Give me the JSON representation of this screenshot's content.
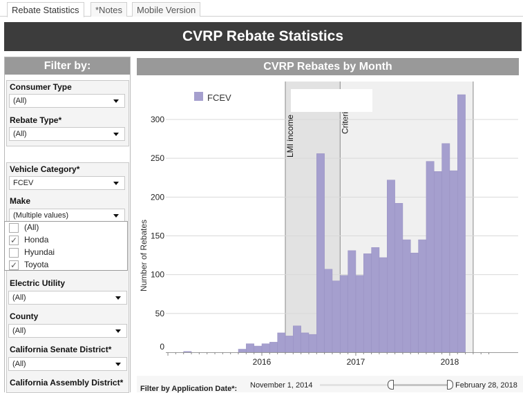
{
  "tabs": [
    {
      "label": "Rebate Statistics",
      "active": true
    },
    {
      "label": "*Notes"
    },
    {
      "label": "Mobile Version"
    }
  ],
  "header": {
    "title": "CVRP Rebate Statistics"
  },
  "filters": {
    "title": "Filter by:",
    "consumer_type": {
      "label": "Consumer Type",
      "value": "(All)"
    },
    "rebate_type": {
      "label": "Rebate Type*",
      "value": "(All)"
    },
    "vehicle_category": {
      "label": "Vehicle Category*",
      "value": "FCEV"
    },
    "make": {
      "label": "Make",
      "value": "(Multiple values)",
      "options": [
        {
          "label": "(All)",
          "checked": false
        },
        {
          "label": "Honda",
          "checked": true
        },
        {
          "label": "Hyundai",
          "checked": false
        },
        {
          "label": "Toyota",
          "checked": true
        }
      ]
    },
    "electric_utility": {
      "label": "Electric Utility",
      "value": "(All)"
    },
    "county": {
      "label": "County",
      "value": "(All)"
    },
    "senate": {
      "label": "California Senate District*",
      "value": "(All)"
    },
    "assembly": {
      "label": "California Assembly District*"
    }
  },
  "date_filter": {
    "label": "Filter by Application Date*:",
    "start": "November 1, 2014",
    "end": "February 28, 2018"
  },
  "chart_data": {
    "type": "bar",
    "title": "CVRP Rebates by Month",
    "ylabel": "Number of Rebates",
    "legend": [
      {
        "name": "FCEV",
        "color": "#a59fce"
      }
    ],
    "legend_placement": "top-left",
    "ylim": [
      0,
      345
    ],
    "yticks": [
      0,
      50,
      100,
      150,
      200,
      250,
      300
    ],
    "xticks": [
      "2016",
      "2017",
      "2018"
    ],
    "xlim": [
      "2015-01",
      "2018-06"
    ],
    "grid": true,
    "bands": [
      {
        "label": "LMI income",
        "from": "2016-04",
        "to": "2016-11",
        "color": "#e2e2e2"
      },
      {
        "label": "Criteri",
        "from": "2016-11",
        "to": "2018-04",
        "color": "#f0f0f0"
      }
    ],
    "categories": [
      "2015-03",
      "2015-10",
      "2015-11",
      "2015-12",
      "2016-01",
      "2016-02",
      "2016-03",
      "2016-04",
      "2016-05",
      "2016-06",
      "2016-07",
      "2016-08",
      "2016-09",
      "2016-10",
      "2016-11",
      "2016-12",
      "2017-01",
      "2017-02",
      "2017-03",
      "2017-04",
      "2017-05",
      "2017-06",
      "2017-07",
      "2017-08",
      "2017-09",
      "2017-10",
      "2017-11",
      "2017-12",
      "2018-01",
      "2018-02"
    ],
    "values": [
      1,
      4,
      11,
      8,
      11,
      13,
      25,
      21,
      34,
      25,
      23,
      256,
      107,
      92,
      99,
      131,
      99,
      127,
      135,
      122,
      222,
      192,
      145,
      128,
      145,
      246,
      233,
      269,
      234,
      332
    ]
  }
}
